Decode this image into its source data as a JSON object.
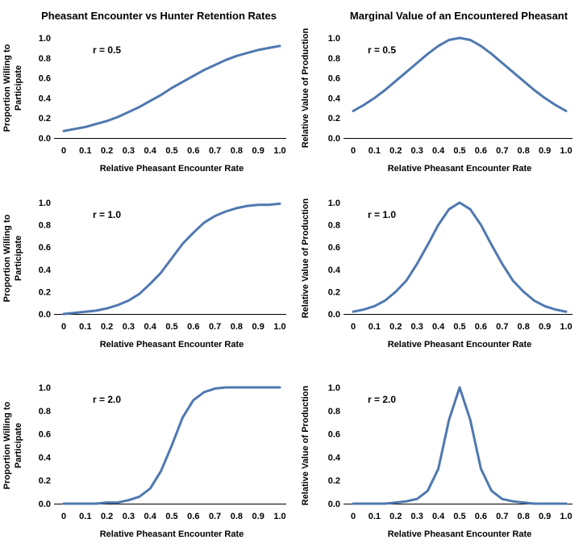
{
  "column_titles": [
    "Pheasant Encounter vs Hunter Retention Rates",
    "Marginal Value of an Encountered Pheasant"
  ],
  "colors": {
    "series": "#4f78b0",
    "axis": "#000000"
  },
  "chart_data": [
    {
      "type": "line",
      "annotation": "r = 0.5",
      "xlabel": "Relative Pheasant Encounter Rate",
      "ylabel": [
        "Proportion Willing to",
        "Participate"
      ],
      "xlim": [
        0,
        1.0
      ],
      "ylim": [
        0,
        1.0
      ],
      "x_ticks": [
        "0",
        "0.1",
        "0.2",
        "0.3",
        "0.4",
        "0.5",
        "0.6",
        "0.7",
        "0.8",
        "0.9",
        "1.0"
      ],
      "y_ticks": [
        "0.0",
        "0.2",
        "0.4",
        "0.6",
        "0.8",
        "1.0"
      ],
      "grid": false,
      "series": [
        {
          "x": [
            0.0,
            0.05,
            0.1,
            0.15,
            0.2,
            0.25,
            0.3,
            0.35,
            0.4,
            0.45,
            0.5,
            0.55,
            0.6,
            0.65,
            0.7,
            0.75,
            0.8,
            0.85,
            0.9,
            0.95,
            1.0
          ],
          "values": [
            0.07,
            0.09,
            0.11,
            0.14,
            0.17,
            0.21,
            0.26,
            0.31,
            0.37,
            0.43,
            0.5,
            0.56,
            0.62,
            0.68,
            0.73,
            0.78,
            0.82,
            0.85,
            0.88,
            0.9,
            0.92
          ]
        }
      ]
    },
    {
      "type": "line",
      "annotation": "r = 0.5",
      "xlabel": "Relative Pheasant Encounter Rate",
      "ylabel": [
        "Relative Value of Production"
      ],
      "xlim": [
        0,
        1.0
      ],
      "ylim": [
        0,
        1.0
      ],
      "x_ticks": [
        "0",
        "0.1",
        "0.2",
        "0.3",
        "0.4",
        "0.5",
        "0.6",
        "0.7",
        "0.8",
        "0.9",
        "1.0"
      ],
      "y_ticks": [
        "0.0",
        "0.2",
        "0.4",
        "0.6",
        "0.8",
        "1.0"
      ],
      "grid": false,
      "series": [
        {
          "x": [
            0.0,
            0.05,
            0.1,
            0.15,
            0.2,
            0.25,
            0.3,
            0.35,
            0.4,
            0.45,
            0.5,
            0.55,
            0.6,
            0.65,
            0.7,
            0.75,
            0.8,
            0.85,
            0.9,
            0.95,
            1.0
          ],
          "values": [
            0.27,
            0.33,
            0.4,
            0.48,
            0.57,
            0.66,
            0.75,
            0.84,
            0.92,
            0.98,
            1.0,
            0.98,
            0.92,
            0.84,
            0.75,
            0.66,
            0.57,
            0.48,
            0.4,
            0.33,
            0.27
          ]
        }
      ]
    },
    {
      "type": "line",
      "annotation": "r = 1.0",
      "xlabel": "Relative Pheasant Encounter Rate",
      "ylabel": [
        "Proportion Willing to",
        "Participate"
      ],
      "xlim": [
        0,
        1.0
      ],
      "ylim": [
        0,
        1.0
      ],
      "x_ticks": [
        "0",
        "0.1",
        "0.2",
        "0.3",
        "0.4",
        "0.5",
        "0.6",
        "0.7",
        "0.8",
        "0.9",
        "1.0"
      ],
      "y_ticks": [
        "0.0",
        "0.2",
        "0.4",
        "0.6",
        "0.8",
        "1.0"
      ],
      "grid": false,
      "series": [
        {
          "x": [
            0.0,
            0.05,
            0.1,
            0.15,
            0.2,
            0.25,
            0.3,
            0.35,
            0.4,
            0.45,
            0.5,
            0.55,
            0.6,
            0.65,
            0.7,
            0.75,
            0.8,
            0.85,
            0.9,
            0.95,
            1.0
          ],
          "values": [
            0.0,
            0.01,
            0.02,
            0.03,
            0.05,
            0.08,
            0.12,
            0.18,
            0.27,
            0.37,
            0.5,
            0.63,
            0.73,
            0.82,
            0.88,
            0.92,
            0.95,
            0.97,
            0.98,
            0.98,
            0.99
          ]
        }
      ]
    },
    {
      "type": "line",
      "annotation": "r = 1.0",
      "xlabel": "Relative Pheasant Encounter Rate",
      "ylabel": [
        "Relative Value of Production"
      ],
      "xlim": [
        0,
        1.0
      ],
      "ylim": [
        0,
        1.0
      ],
      "x_ticks": [
        "0",
        "0.1",
        "0.2",
        "0.3",
        "0.4",
        "0.5",
        "0.6",
        "0.7",
        "0.8",
        "0.9",
        "1.0"
      ],
      "y_ticks": [
        "0.0",
        "0.2",
        "0.4",
        "0.6",
        "0.8",
        "1.0"
      ],
      "grid": false,
      "series": [
        {
          "x": [
            0.0,
            0.05,
            0.1,
            0.15,
            0.2,
            0.25,
            0.3,
            0.35,
            0.4,
            0.45,
            0.5,
            0.55,
            0.6,
            0.65,
            0.7,
            0.75,
            0.8,
            0.85,
            0.9,
            0.95,
            1.0
          ],
          "values": [
            0.02,
            0.04,
            0.07,
            0.12,
            0.2,
            0.3,
            0.45,
            0.62,
            0.8,
            0.94,
            1.0,
            0.94,
            0.8,
            0.62,
            0.45,
            0.3,
            0.2,
            0.12,
            0.07,
            0.04,
            0.02
          ]
        }
      ]
    },
    {
      "type": "line",
      "annotation": "r = 2.0",
      "xlabel": "Relative Pheasant Encounter Rate",
      "ylabel": [
        "Proportion Willing to",
        "Participate"
      ],
      "xlim": [
        0,
        1.0
      ],
      "ylim": [
        0,
        1.0
      ],
      "x_ticks": [
        "0",
        "0.1",
        "0.2",
        "0.3",
        "0.4",
        "0.5",
        "0.6",
        "0.7",
        "0.8",
        "0.9",
        "1.0"
      ],
      "y_ticks": [
        "0.0",
        "0.2",
        "0.4",
        "0.6",
        "0.8",
        "1.0"
      ],
      "grid": false,
      "series": [
        {
          "x": [
            0.0,
            0.05,
            0.1,
            0.15,
            0.2,
            0.25,
            0.3,
            0.35,
            0.4,
            0.45,
            0.5,
            0.55,
            0.6,
            0.65,
            0.7,
            0.75,
            0.8,
            0.85,
            0.9,
            0.95,
            1.0
          ],
          "values": [
            0.0,
            0.0,
            0.0,
            0.0,
            0.01,
            0.01,
            0.03,
            0.06,
            0.13,
            0.28,
            0.5,
            0.74,
            0.89,
            0.96,
            0.99,
            1.0,
            1.0,
            1.0,
            1.0,
            1.0,
            1.0
          ]
        }
      ]
    },
    {
      "type": "line",
      "annotation": "r = 2.0",
      "xlabel": "Relative Pheasant Encounter Rate",
      "ylabel": [
        "Relative Value of Production"
      ],
      "xlim": [
        0,
        1.0
      ],
      "ylim": [
        0,
        1.0
      ],
      "x_ticks": [
        "0",
        "0.1",
        "0.2",
        "0.3",
        "0.4",
        "0.5",
        "0.6",
        "0.7",
        "0.8",
        "0.9",
        "1.0"
      ],
      "y_ticks": [
        "0.0",
        "0.2",
        "0.4",
        "0.6",
        "0.8",
        "1.0"
      ],
      "grid": false,
      "series": [
        {
          "x": [
            0.0,
            0.05,
            0.1,
            0.15,
            0.2,
            0.25,
            0.3,
            0.35,
            0.4,
            0.45,
            0.5,
            0.55,
            0.6,
            0.65,
            0.7,
            0.75,
            0.8,
            0.85,
            0.9,
            0.95,
            1.0
          ],
          "values": [
            0.0,
            0.0,
            0.0,
            0.0,
            0.01,
            0.02,
            0.04,
            0.11,
            0.3,
            0.72,
            1.0,
            0.72,
            0.3,
            0.11,
            0.04,
            0.02,
            0.01,
            0.0,
            0.0,
            0.0,
            0.0
          ]
        }
      ]
    }
  ]
}
